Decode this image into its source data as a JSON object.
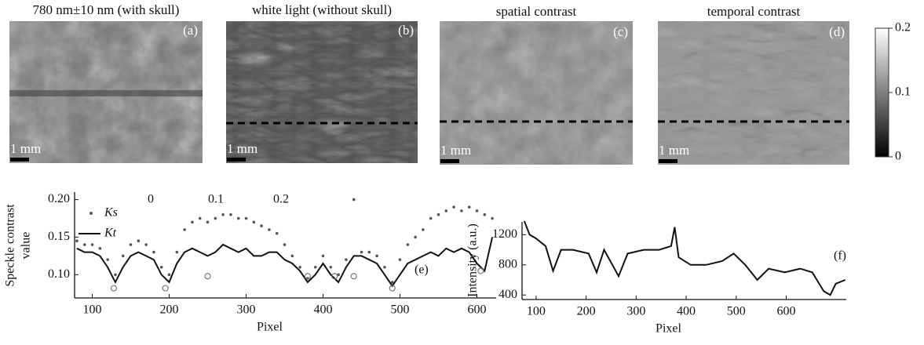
{
  "panels": [
    {
      "title": "780 nm±10 nm (with skull)",
      "label": "(a)",
      "scale": "1 mm"
    },
    {
      "title": "white light (without skull)",
      "label": "(b)",
      "scale": "1 mm"
    },
    {
      "title": "spatial contrast",
      "label": "(c)",
      "scale": "1 mm"
    },
    {
      "title": "temporal contrast",
      "label": "(d)",
      "scale": "1 mm"
    }
  ],
  "colorbar": {
    "lim": [
      0,
      0.2
    ],
    "ticks": [
      0,
      0.1,
      0.2
    ]
  },
  "chart_data": [
    {
      "type": "line",
      "y_label_lines": [
        "Speckle contrast",
        "value"
      ],
      "x_label": "Pixel",
      "xlim": [
        77,
        625
      ],
      "ylim": [
        0.069,
        0.21
      ],
      "xticks": [
        100,
        200,
        300,
        400,
        500,
        600
      ],
      "yticks": [
        {
          "value": 0.1,
          "label": "0.10"
        },
        {
          "value": 0.15,
          "label": "0.15"
        },
        {
          "value": 0.2,
          "label": "0.20"
        }
      ],
      "annotations": [
        "0",
        "0.1",
        "0.2",
        "(e)"
      ],
      "series": [
        {
          "name": "Ks",
          "color": "#555555",
          "mode": "markers",
          "x": [
            80,
            90,
            100,
            110,
            120,
            130,
            140,
            150,
            160,
            170,
            180,
            190,
            200,
            210,
            220,
            230,
            240,
            250,
            260,
            270,
            280,
            290,
            300,
            310,
            320,
            330,
            340,
            350,
            360,
            370,
            380,
            390,
            400,
            410,
            420,
            430,
            440,
            450,
            460,
            470,
            480,
            490,
            500,
            510,
            520,
            530,
            540,
            550,
            560,
            570,
            580,
            590,
            600,
            610,
            620
          ],
          "values": [
            0.145,
            0.14,
            0.14,
            0.135,
            0.12,
            0.1,
            0.125,
            0.14,
            0.145,
            0.14,
            0.13,
            0.11,
            0.1,
            0.13,
            0.16,
            0.17,
            0.175,
            0.17,
            0.175,
            0.18,
            0.18,
            0.175,
            0.175,
            0.17,
            0.165,
            0.16,
            0.155,
            0.14,
            0.125,
            0.11,
            0.095,
            0.11,
            0.125,
            0.11,
            0.1,
            0.12,
            0.2,
            0.13,
            0.13,
            0.125,
            0.11,
            0.09,
            0.12,
            0.14,
            0.15,
            0.16,
            0.175,
            0.18,
            0.185,
            0.19,
            0.185,
            0.19,
            0.185,
            0.18,
            0.175
          ]
        },
        {
          "name": "Kt",
          "color": "#111111",
          "mode": "line",
          "x": [
            80,
            90,
            100,
            110,
            120,
            130,
            140,
            150,
            160,
            170,
            180,
            190,
            200,
            210,
            220,
            230,
            240,
            250,
            260,
            270,
            280,
            290,
            300,
            310,
            320,
            330,
            340,
            350,
            360,
            370,
            380,
            390,
            400,
            410,
            420,
            430,
            440,
            450,
            460,
            470,
            480,
            490,
            500,
            510,
            520,
            530,
            540,
            550,
            560,
            570,
            580,
            590,
            600,
            610,
            620
          ],
          "values": [
            0.135,
            0.13,
            0.13,
            0.125,
            0.11,
            0.09,
            0.11,
            0.125,
            0.13,
            0.125,
            0.12,
            0.1,
            0.09,
            0.115,
            0.13,
            0.135,
            0.13,
            0.125,
            0.13,
            0.14,
            0.135,
            0.13,
            0.135,
            0.125,
            0.125,
            0.13,
            0.13,
            0.12,
            0.115,
            0.105,
            0.09,
            0.1,
            0.115,
            0.1,
            0.09,
            0.11,
            0.125,
            0.125,
            0.12,
            0.115,
            0.1,
            0.085,
            0.1,
            0.115,
            0.12,
            0.125,
            0.13,
            0.125,
            0.135,
            0.13,
            0.135,
            0.13,
            0.115,
            0.105,
            0.15
          ]
        }
      ],
      "minima": {
        "x": [
          128,
          195,
          250,
          380,
          415,
          440,
          490,
          605
        ],
        "values": [
          0.082,
          0.082,
          0.098,
          0.098,
          0.098,
          0.098,
          0.082,
          0.105
        ]
      }
    },
    {
      "type": "line",
      "y_label_lines": [
        "Intensity (a.u.)"
      ],
      "x_label": "Pixel",
      "xlim": [
        72,
        720
      ],
      "ylim": [
        340,
        1370
      ],
      "xticks": [
        100,
        200,
        300,
        400,
        500,
        600
      ],
      "yticks": [
        400,
        800,
        1200
      ],
      "annotations": [
        "(f)"
      ],
      "series": [
        {
          "color": "#111111",
          "mode": "line",
          "x": [
            76.5,
            87,
            100,
            119,
            134,
            150,
            174,
            205,
            221,
            236,
            265,
            283,
            315,
            346,
            370,
            377,
            385,
            409,
            440,
            472,
            495,
            518,
            542,
            565,
            597,
            628,
            652,
            675,
            688,
            699,
            718
          ],
          "values": [
            1380,
            1200,
            1150,
            1050,
            720,
            1000,
            1000,
            950,
            700,
            1000,
            650,
            950,
            1000,
            1000,
            1050,
            1300,
            900,
            800,
            800,
            850,
            950,
            800,
            600,
            750,
            700,
            750,
            700,
            450,
            400,
            550,
            600
          ]
        }
      ]
    }
  ]
}
